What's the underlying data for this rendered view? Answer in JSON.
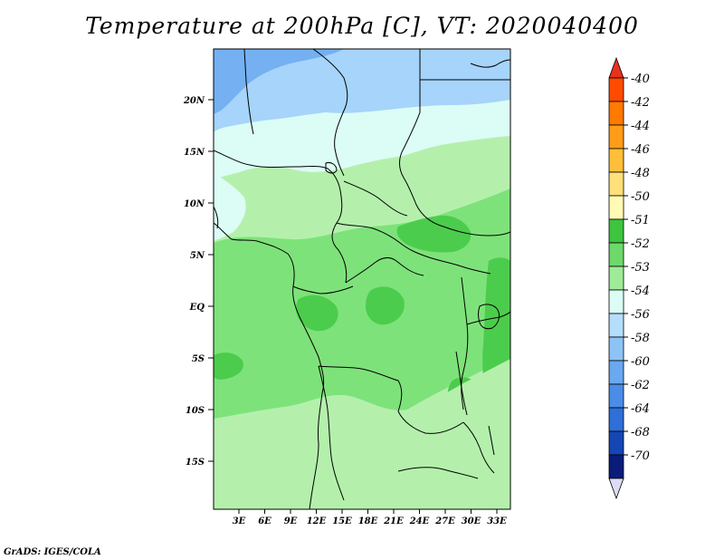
{
  "title": "Temperature at 200hPa [C], VT: 2020040400",
  "credit": "GrADS: IGES/COLA",
  "map": {
    "lat_ticks": [
      "20N",
      "15N",
      "10N",
      "5N",
      "EQ",
      "5S",
      "10S",
      "15S"
    ],
    "lon_ticks": [
      "3E",
      "6E",
      "9E",
      "12E",
      "15E",
      "18E",
      "21E",
      "24E",
      "27E",
      "30E",
      "33E"
    ]
  },
  "colorbar": {
    "labels": [
      "-40",
      "-42",
      "-44",
      "-46",
      "-48",
      "-50",
      "-51",
      "-52",
      "-53",
      "-54",
      "-56",
      "-58",
      "-60",
      "-62",
      "-64",
      "-68",
      "-70"
    ],
    "colors": {
      "top_arrow": "#e8321e",
      "bands": [
        "#ff4b00",
        "#ff7a00",
        "#ff9d1a",
        "#ffbf3a",
        "#ffe07a",
        "#fffab4",
        "#3ec43e",
        "#6ed86a",
        "#a0eb98",
        "#dcfcf6",
        "#b4defb",
        "#8ec4f5",
        "#6aa8f0",
        "#4a8ce8",
        "#2e6fd8",
        "#1446b4",
        "#0a1c7a"
      ],
      "bottom_arrow": "#dcdcf6"
    }
  },
  "field_colors": {
    "t_minus_58": "#74b0f2",
    "t_minus_56": "#a6d4fa",
    "t_minus_54": "#dcfcf6",
    "t_minus_53": "#b4f0ac",
    "t_minus_52": "#7ee27a",
    "t_minus_51": "#4ccc4c"
  }
}
